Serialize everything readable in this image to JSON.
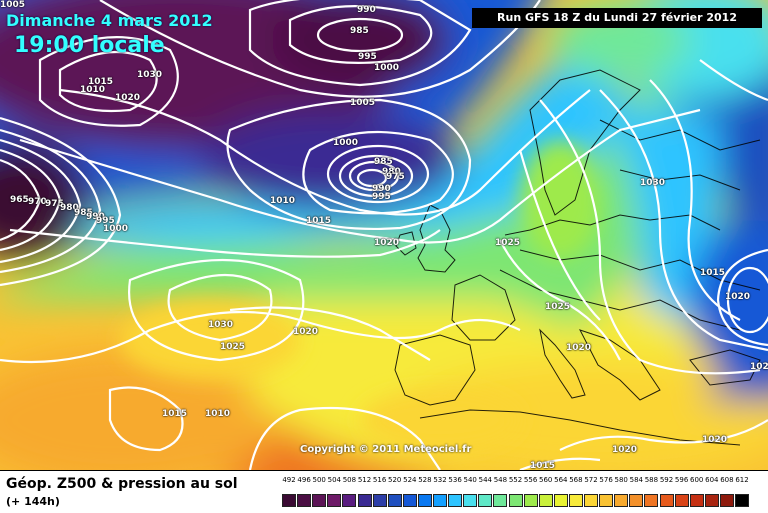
{
  "header": {
    "date": "Dimanche 4 mars 2012",
    "time": "19:00 locale",
    "run": "Run GFS 18 Z du Lundi 27 février 2012"
  },
  "copyright": "Copyright © 2011 Meteociel.fr",
  "footer": {
    "title": "Géop. Z500 & pression au sol",
    "subtitle": "(+ 144h)"
  },
  "legend": {
    "values": [
      "492",
      "496",
      "500",
      "504",
      "508",
      "512",
      "516",
      "520",
      "524",
      "528",
      "532",
      "536",
      "540",
      "544",
      "548",
      "552",
      "556",
      "560",
      "564",
      "568",
      "572",
      "576",
      "580",
      "584",
      "588",
      "592",
      "596",
      "600",
      "604",
      "608",
      "612"
    ],
    "colors": [
      "#3a0a33",
      "#4b0f44",
      "#5c1456",
      "#6e1a68",
      "#5a1d80",
      "#3a2a93",
      "#2d3ea8",
      "#1f4fbf",
      "#1558d6",
      "#0a78f0",
      "#14a0ff",
      "#2dc4ff",
      "#4ae0ee",
      "#5fe8c7",
      "#6fe89a",
      "#7de673",
      "#9eea4c",
      "#c9f03a",
      "#e8f232",
      "#f7ea3a",
      "#fbd636",
      "#f9c233",
      "#f7aa2f",
      "#f3902a",
      "#ef7524",
      "#e65a1c",
      "#d94317",
      "#c53013",
      "#a82410",
      "#8e1a0d",
      "#000000"
    ]
  },
  "isobar_labels": [
    {
      "text": "990"
    },
    {
      "text": "985"
    },
    {
      "text": "995"
    },
    {
      "text": "1000"
    },
    {
      "text": "1005"
    },
    {
      "text": "1000"
    },
    {
      "text": "985"
    },
    {
      "text": "980"
    },
    {
      "text": "975"
    },
    {
      "text": "990"
    },
    {
      "text": "995"
    },
    {
      "text": "1015"
    },
    {
      "text": "1010"
    },
    {
      "text": "1030"
    },
    {
      "text": "1020"
    },
    {
      "text": "1010"
    },
    {
      "text": "1015"
    },
    {
      "text": "1020"
    },
    {
      "text": "1025"
    },
    {
      "text": "1030"
    },
    {
      "text": "1025"
    },
    {
      "text": "1020"
    },
    {
      "text": "1015"
    },
    {
      "text": "1020"
    },
    {
      "text": "1025"
    },
    {
      "text": "1020"
    },
    {
      "text": "1030"
    },
    {
      "text": "1015"
    },
    {
      "text": "1010"
    },
    {
      "text": "1020"
    },
    {
      "text": "1020"
    },
    {
      "text": "1015"
    },
    {
      "text": "1020"
    },
    {
      "text": "965"
    },
    {
      "text": "970"
    },
    {
      "text": "975"
    },
    {
      "text": "980"
    },
    {
      "text": "985"
    },
    {
      "text": "990"
    },
    {
      "text": "995"
    },
    {
      "text": "1000"
    },
    {
      "text": "1005"
    }
  ]
}
